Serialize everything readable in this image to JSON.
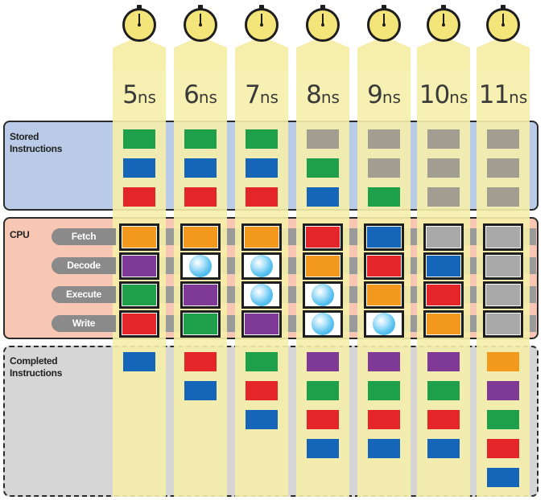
{
  "times": [
    "5",
    "6",
    "7",
    "8",
    "9",
    "10",
    "11"
  ],
  "time_unit": "ns",
  "panels": {
    "stored_label": "Stored\nInstructions",
    "cpu_label": "CPU",
    "completed_label": "Completed\nInstructions"
  },
  "stages": [
    "Fetch",
    "Decode",
    "Execute",
    "Write"
  ],
  "colors": {
    "green": "#1ea04a",
    "blue": "#1565b8",
    "red": "#e4262a",
    "orange": "#f39a1e",
    "purple": "#7e3a96",
    "gray": "#a29e92",
    "light_gray": "#a8a8a8",
    "column": "#f6eeab",
    "stored_bg": "#b9cbe6",
    "cpu_bg": "#f7c7b3",
    "completed_bg": "#d6d6d6"
  },
  "columns": [
    {
      "stored": [
        "green",
        "blue",
        "red"
      ],
      "cpu": [
        "orange",
        "purple",
        "green",
        "red"
      ],
      "completed": [
        "blue"
      ]
    },
    {
      "stored": [
        "green",
        "blue",
        "red"
      ],
      "cpu": [
        "orange",
        "bubble",
        "purple",
        "green"
      ],
      "completed": [
        "red",
        "blue"
      ]
    },
    {
      "stored": [
        "green",
        "blue",
        "red"
      ],
      "cpu": [
        "orange",
        "bubble",
        "bubble",
        "purple"
      ],
      "completed": [
        "green",
        "red",
        "blue"
      ]
    },
    {
      "stored": [
        "gray",
        "green",
        "blue"
      ],
      "cpu": [
        "red",
        "orange",
        "bubble",
        "bubble"
      ],
      "completed": [
        "purple",
        "green",
        "red",
        "blue"
      ]
    },
    {
      "stored": [
        "gray",
        "gray",
        "green"
      ],
      "cpu": [
        "blue",
        "red",
        "orange",
        "bubble"
      ],
      "completed": [
        "purple",
        "green",
        "red",
        "blue"
      ]
    },
    {
      "stored": [
        "gray",
        "gray",
        "gray"
      ],
      "cpu": [
        "light_gray",
        "blue",
        "red",
        "orange"
      ],
      "completed": [
        "purple",
        "green",
        "red",
        "blue"
      ]
    },
    {
      "stored": [
        "gray",
        "gray",
        "gray"
      ],
      "cpu": [
        "light_gray",
        "light_gray",
        "light_gray",
        "light_gray"
      ],
      "completed": [
        "orange",
        "purple",
        "green",
        "red",
        "blue"
      ]
    }
  ]
}
